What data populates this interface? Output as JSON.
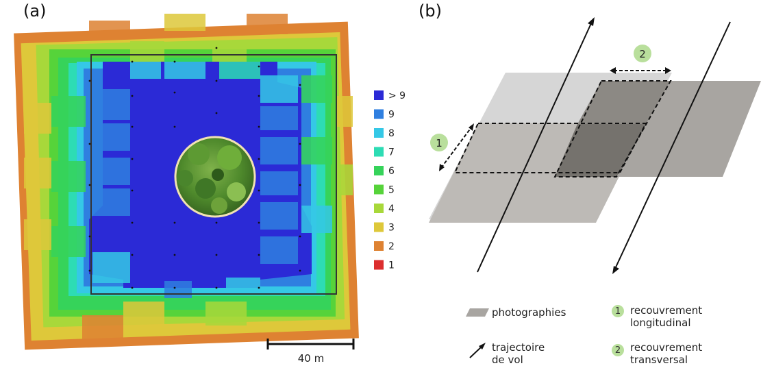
{
  "panel_a": {
    "label": "(a)",
    "legend": [
      {
        "label": "> 9",
        "color": "#2b2ad6"
      },
      {
        "label": "9",
        "color": "#2f7fe0"
      },
      {
        "label": "8",
        "color": "#35c8e6"
      },
      {
        "label": "7",
        "color": "#2ddcb4"
      },
      {
        "label": "6",
        "color": "#36d35a"
      },
      {
        "label": "5",
        "color": "#56d33a"
      },
      {
        "label": "4",
        "color": "#a8d83a"
      },
      {
        "label": "3",
        "color": "#dec83a"
      },
      {
        "label": "2",
        "color": "#de8232"
      },
      {
        "label": "1",
        "color": "#dc2e2e"
      }
    ],
    "scale_bar": "40 m"
  },
  "panel_b": {
    "label": "(b)",
    "badge_1": "1",
    "badge_2": "2",
    "legend": {
      "photos": "photographies",
      "trajectory_line1": "trajectoire",
      "trajectory_line2": "de vol",
      "longitudinal_line1": "recouvrement",
      "longitudinal_line2": "longitudinal",
      "transversal_line1": "recouvrement",
      "transversal_line2": "transversal"
    }
  },
  "colors": {
    "photo_light": "#d6d6d6",
    "photo_dark": "#a8a5a1",
    "overlap": "#8c8984",
    "badge": "#b9df9c"
  }
}
